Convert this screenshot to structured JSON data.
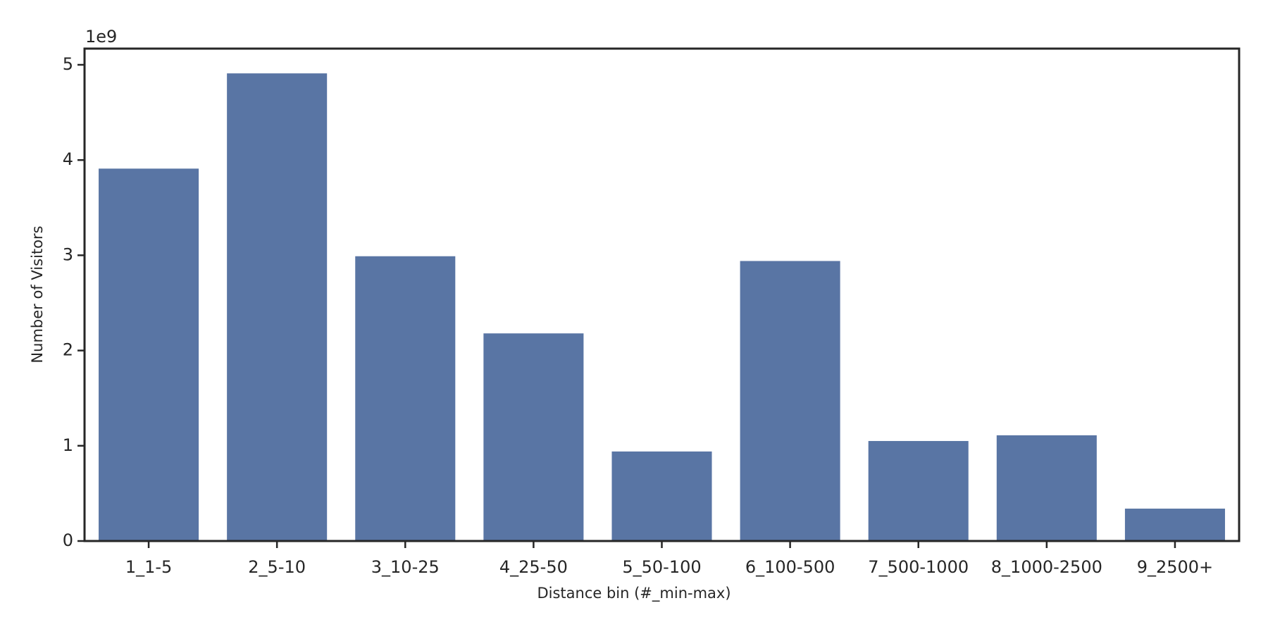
{
  "chart_data": {
    "type": "bar",
    "x_label": "Distance bin (#_min-max)",
    "y_label": "Number of Visitors",
    "y_offset_label": "1e9",
    "categories": [
      "1_1-5",
      "2_5-10",
      "3_10-25",
      "4_25-50",
      "5_50-100",
      "6_100-500",
      "7_500-1000",
      "8_1000-2500",
      "9_2500+"
    ],
    "values": [
      3.91,
      4.91,
      2.99,
      2.18,
      0.94,
      2.94,
      1.05,
      1.11,
      0.34
    ],
    "color": "#5975a4",
    "ylim": [
      0,
      5.17
    ],
    "yticks": [
      0,
      1,
      2,
      3,
      4,
      5
    ],
    "grid": false
  }
}
